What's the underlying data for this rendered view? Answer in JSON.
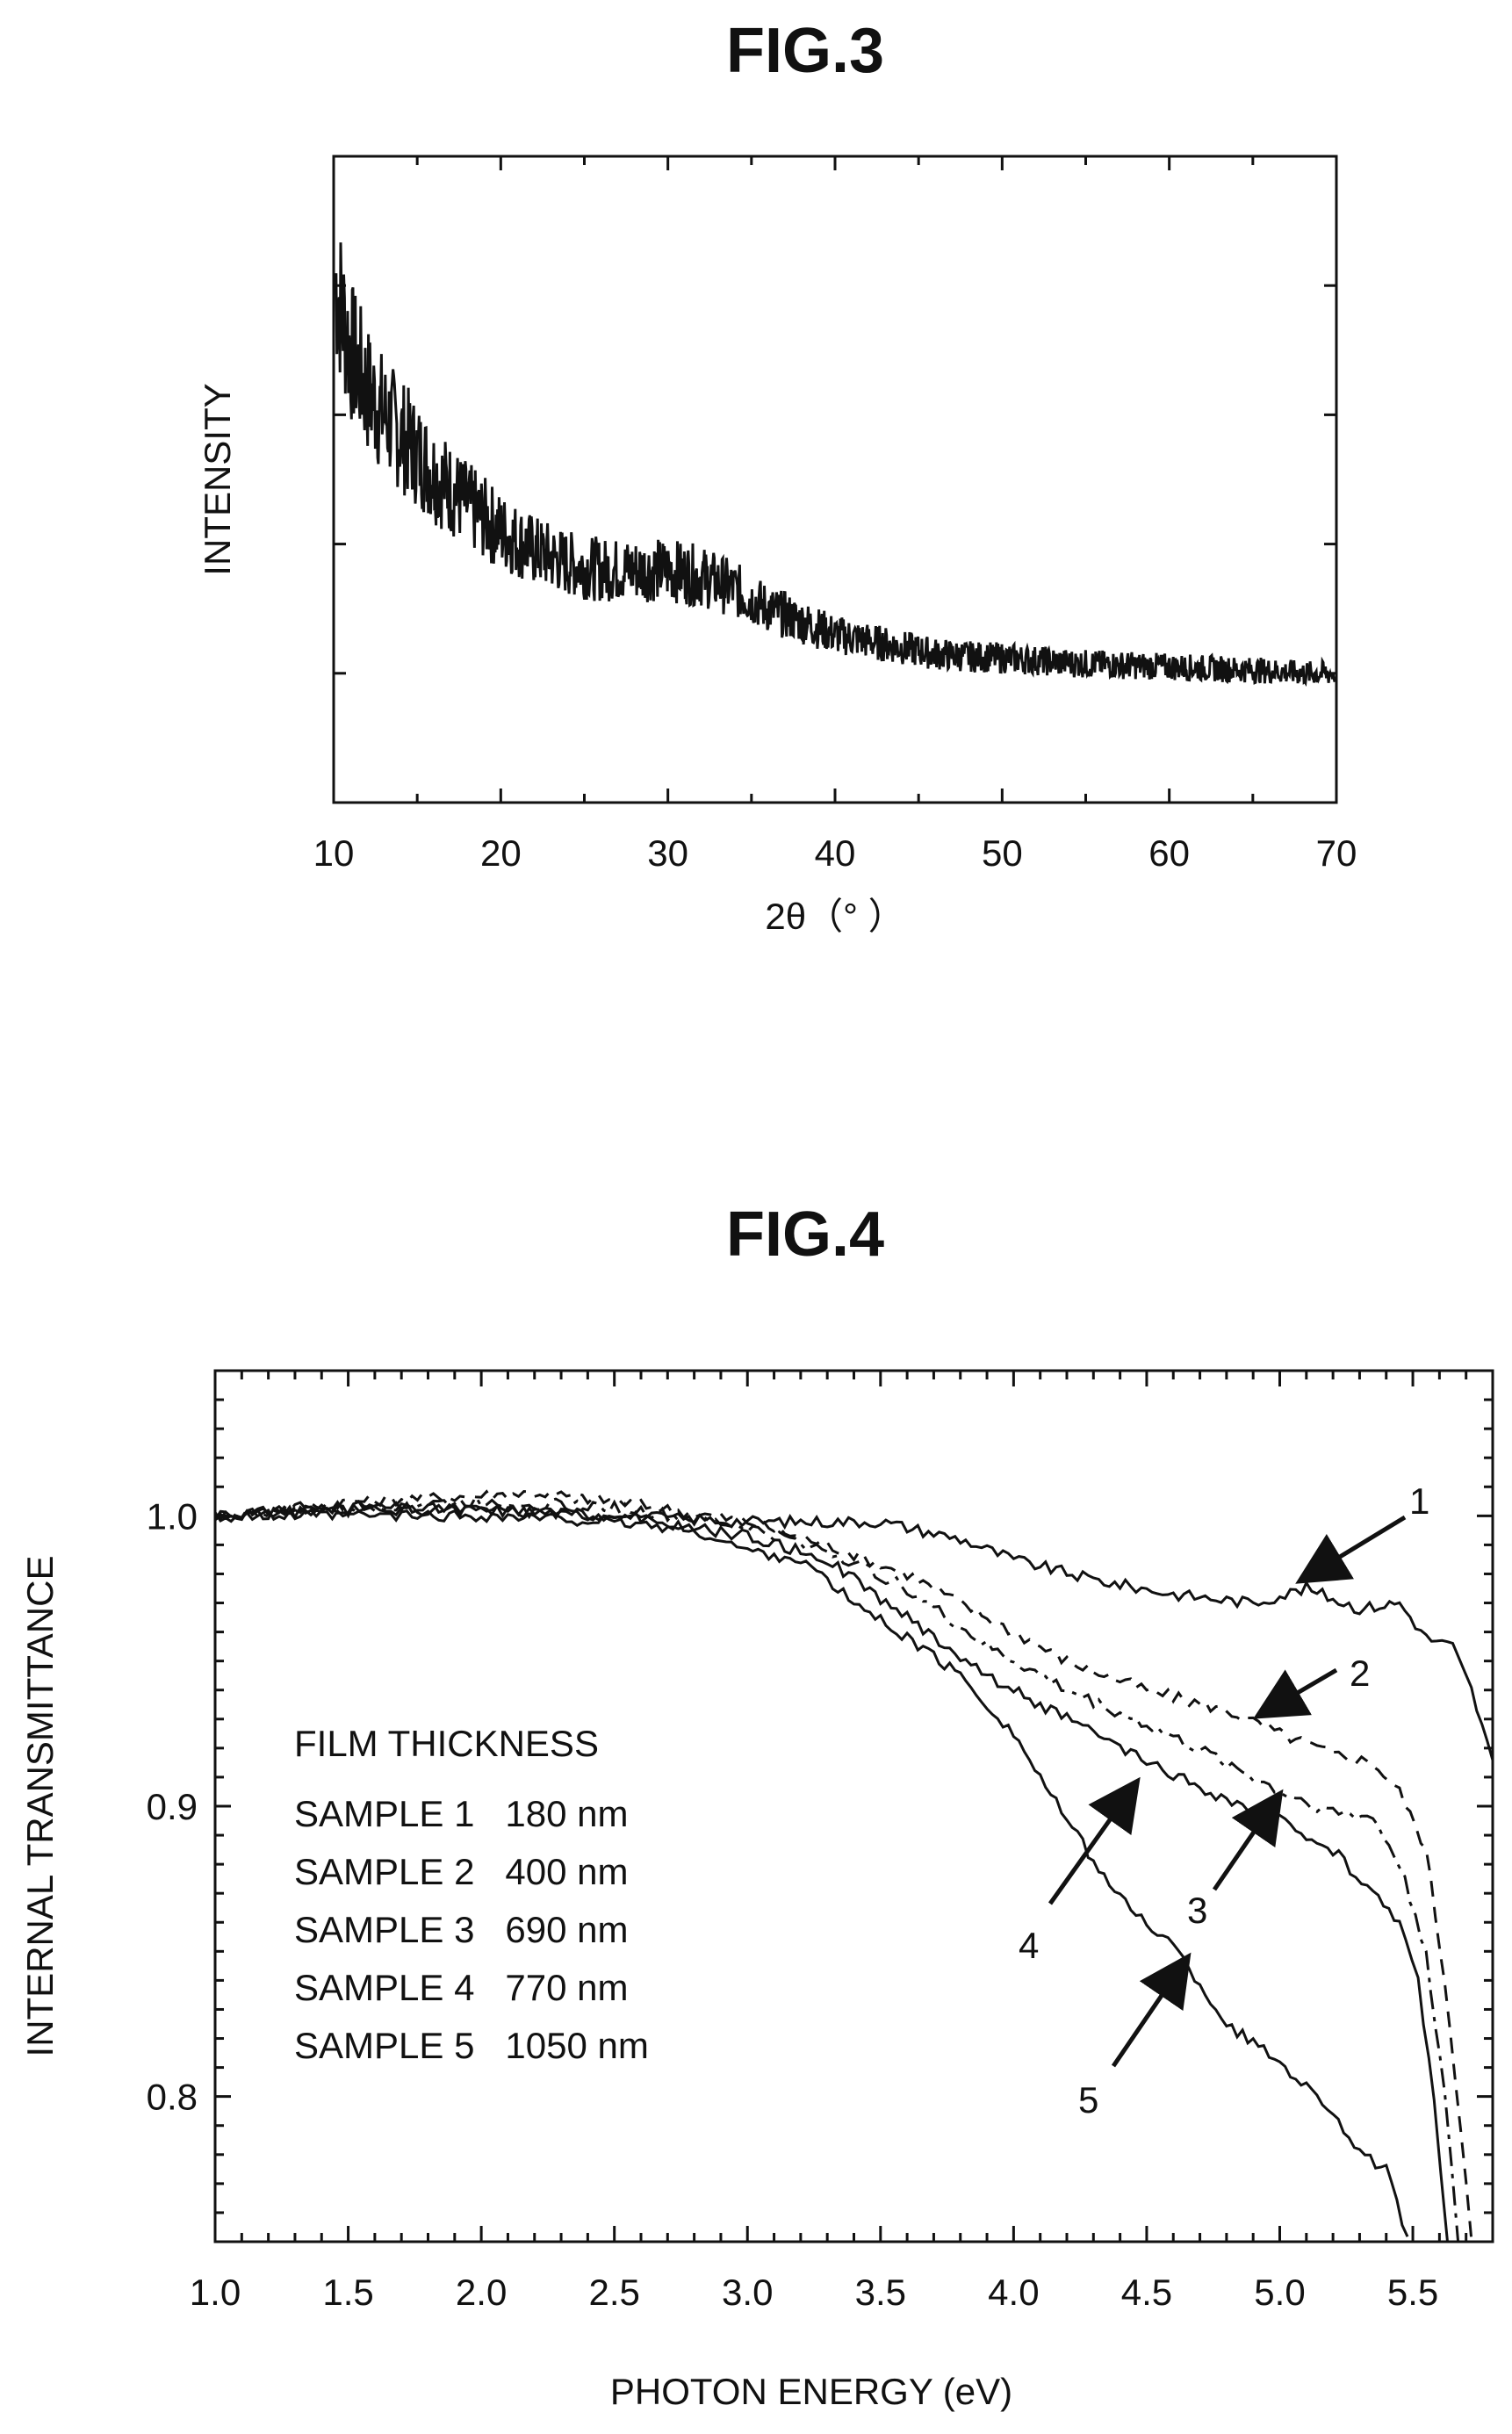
{
  "chart_data": [
    {
      "type": "line",
      "title": "FIG.3",
      "xlabel": "2θ（°  ）",
      "ylabel": "INTENSITY",
      "xlim": [
        10,
        70
      ],
      "ylim": [
        0,
        5
      ],
      "x_ticks": [
        "10",
        "20",
        "30",
        "40",
        "50",
        "60",
        "70"
      ],
      "y_ticks_labeled": false,
      "grid": false,
      "series": [
        {
          "x": [
            10,
            11,
            12,
            13,
            14,
            15,
            16,
            18,
            20,
            22,
            24,
            26,
            28,
            30,
            32,
            34,
            36,
            38,
            40,
            42,
            44,
            46,
            48,
            50,
            52,
            54,
            56,
            58,
            60,
            62,
            64,
            66,
            68,
            70
          ],
          "values": [
            4.1,
            3.5,
            3.2,
            3.0,
            2.85,
            2.7,
            2.55,
            2.3,
            2.1,
            1.95,
            1.85,
            1.8,
            1.8,
            1.8,
            1.75,
            1.65,
            1.5,
            1.4,
            1.3,
            1.25,
            1.2,
            1.15,
            1.13,
            1.12,
            1.1,
            1.08,
            1.07,
            1.06,
            1.05,
            1.04,
            1.03,
            1.02,
            1.0,
            1.0
          ]
        }
      ]
    },
    {
      "type": "line",
      "title": "FIG.4",
      "xlabel": "PHOTON ENERGY (eV)",
      "ylabel": "INTERNAL TRANSMITTANCE",
      "xlim": [
        1.0,
        5.8
      ],
      "ylim": [
        0.75,
        1.05
      ],
      "x_ticks": [
        "1.0",
        "1.5",
        "2.0",
        "2.5",
        "3.0",
        "3.5",
        "4.0",
        "4.5",
        "5.0",
        "5.5"
      ],
      "y_ticks": [
        "0.8",
        "0.9",
        "1.0"
      ],
      "grid": false,
      "legend": {
        "title": "FILM THICKNESS",
        "entries": [
          "SAMPLE 1   180 nm",
          "SAMPLE 2   400 nm",
          "SAMPLE 3   690 nm",
          "SAMPLE 4   770 nm",
          "SAMPLE 5   1050 nm"
        ]
      },
      "series": [
        {
          "label": "1",
          "x": [
            1.0,
            1.5,
            2.0,
            2.5,
            3.0,
            3.5,
            3.8,
            4.0,
            4.3,
            4.6,
            4.9,
            5.1,
            5.3,
            5.45,
            5.55,
            5.65,
            5.72,
            5.8
          ],
          "values": [
            1.0,
            1.003,
            1.002,
            1.0,
            0.998,
            0.998,
            0.992,
            0.985,
            0.978,
            0.973,
            0.97,
            0.975,
            0.968,
            0.97,
            0.958,
            0.955,
            0.94,
            0.915
          ]
        },
        {
          "label": "2",
          "x": [
            1.0,
            1.5,
            2.0,
            2.2,
            2.5,
            3.0,
            3.3,
            3.6,
            3.9,
            4.2,
            4.5,
            4.8,
            5.0,
            5.2,
            5.35,
            5.45,
            5.55,
            5.62,
            5.68,
            5.72
          ],
          "values": [
            1.0,
            1.005,
            1.007,
            1.008,
            1.005,
            0.998,
            0.99,
            0.98,
            0.965,
            0.95,
            0.94,
            0.933,
            0.925,
            0.918,
            0.915,
            0.905,
            0.885,
            0.84,
            0.79,
            0.75
          ]
        },
        {
          "label": "3",
          "x": [
            1.0,
            1.5,
            2.0,
            2.5,
            3.0,
            3.3,
            3.6,
            3.9,
            4.2,
            4.5,
            4.8,
            5.0,
            5.2,
            5.35,
            5.45,
            5.55,
            5.62,
            5.67
          ],
          "values": [
            1.0,
            1.003,
            1.005,
            1.003,
            0.996,
            0.988,
            0.975,
            0.955,
            0.94,
            0.928,
            0.915,
            0.905,
            0.898,
            0.896,
            0.88,
            0.85,
            0.8,
            0.75
          ]
        },
        {
          "label": "4",
          "x": [
            1.0,
            1.5,
            2.0,
            2.5,
            3.0,
            3.3,
            3.6,
            3.9,
            4.2,
            4.5,
            4.8,
            5.0,
            5.2,
            5.35,
            5.45,
            5.52,
            5.58,
            5.63
          ],
          "values": [
            1.0,
            1.002,
            1.002,
            1.0,
            0.993,
            0.985,
            0.965,
            0.945,
            0.93,
            0.915,
            0.902,
            0.895,
            0.885,
            0.87,
            0.86,
            0.84,
            0.8,
            0.75
          ]
        },
        {
          "label": "5",
          "x": [
            1.0,
            1.5,
            2.0,
            2.5,
            2.8,
            3.0,
            3.2,
            3.4,
            3.6,
            3.8,
            4.0,
            4.2,
            4.4,
            4.6,
            4.8,
            5.0,
            5.2,
            5.3,
            5.4,
            5.48
          ],
          "values": [
            1.0,
            1.0,
            1.0,
            0.998,
            0.995,
            0.988,
            0.985,
            0.97,
            0.958,
            0.945,
            0.925,
            0.895,
            0.868,
            0.852,
            0.825,
            0.812,
            0.795,
            0.78,
            0.775,
            0.75
          ]
        }
      ],
      "annotations": [
        "1",
        "2",
        "3",
        "4",
        "5"
      ]
    }
  ],
  "colors": {
    "ink": "#111111",
    "background": "#ffffff"
  }
}
